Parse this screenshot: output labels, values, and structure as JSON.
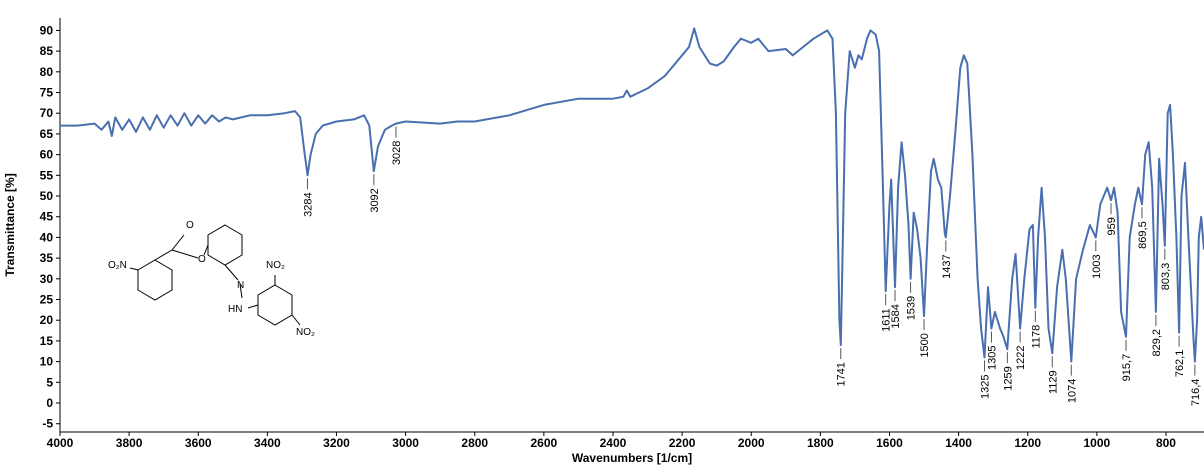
{
  "chart_data": {
    "type": "line",
    "x_label": "Wavenumbers [1/cm]",
    "y_label": "Transmittance [%]",
    "xlim": [
      4000,
      690
    ],
    "ylim": [
      -7,
      93
    ],
    "xticks": [
      4000,
      3800,
      3600,
      3400,
      3200,
      3000,
      2800,
      2600,
      2400,
      2200,
      2000,
      1800,
      1600,
      1400,
      1200,
      1000,
      800
    ],
    "yticks": [
      -5,
      0,
      5,
      10,
      15,
      20,
      25,
      30,
      35,
      40,
      45,
      50,
      55,
      60,
      65,
      70,
      75,
      80,
      85,
      90
    ],
    "series": [
      {
        "color": "#4a6fb0",
        "x": [
          4000,
          3950,
          3900,
          3880,
          3860,
          3850,
          3840,
          3820,
          3800,
          3780,
          3760,
          3740,
          3720,
          3700,
          3680,
          3660,
          3640,
          3620,
          3600,
          3580,
          3560,
          3540,
          3520,
          3500,
          3450,
          3400,
          3350,
          3320,
          3305,
          3295,
          3284,
          3275,
          3260,
          3240,
          3200,
          3150,
          3120,
          3105,
          3092,
          3080,
          3060,
          3040,
          3028,
          3000,
          2900,
          2850,
          2800,
          2700,
          2600,
          2500,
          2400,
          2370,
          2360,
          2350,
          2300,
          2250,
          2200,
          2180,
          2165,
          2150,
          2120,
          2100,
          2080,
          2050,
          2030,
          2000,
          1980,
          1950,
          1900,
          1880,
          1850,
          1820,
          1780,
          1765,
          1755,
          1745,
          1741,
          1737,
          1728,
          1715,
          1700,
          1690,
          1680,
          1665,
          1655,
          1640,
          1630,
          1620,
          1611,
          1600,
          1595,
          1584,
          1575,
          1565,
          1555,
          1545,
          1539,
          1530,
          1520,
          1510,
          1500,
          1490,
          1480,
          1472,
          1460,
          1450,
          1440,
          1437,
          1425,
          1410,
          1395,
          1385,
          1375,
          1360,
          1345,
          1335,
          1325,
          1315,
          1305,
          1295,
          1280,
          1270,
          1259,
          1245,
          1235,
          1222,
          1210,
          1195,
          1185,
          1178,
          1170,
          1160,
          1150,
          1140,
          1129,
          1115,
          1100,
          1090,
          1074,
          1060,
          1040,
          1020,
          1003,
          990,
          970,
          959,
          950,
          940,
          930,
          915.7,
          905,
          890,
          880,
          869.5,
          860,
          850,
          840,
          829.2,
          820,
          810,
          803.3,
          795,
          788,
          780,
          770,
          762.1,
          755,
          745,
          735,
          720,
          716.4,
          710,
          705,
          698,
          690
        ],
        "values": [
          67,
          67,
          67.5,
          66,
          68,
          64.5,
          69,
          66,
          68.5,
          65.5,
          69,
          66,
          69.5,
          66.5,
          69.5,
          67,
          70,
          67,
          69.5,
          67.5,
          69.5,
          68,
          69,
          68.5,
          69.5,
          69.5,
          70,
          70.5,
          69,
          62,
          55,
          60,
          65,
          67,
          68,
          68.5,
          69.5,
          67,
          56,
          62,
          66,
          67,
          67.5,
          68,
          67.5,
          68,
          68,
          69.5,
          72,
          73.5,
          73.5,
          74,
          75.5,
          74,
          76,
          79,
          84,
          86,
          90.5,
          86,
          82,
          81.5,
          82.5,
          86,
          88,
          87,
          88,
          85,
          85.5,
          84,
          86,
          88,
          90,
          88,
          70,
          20,
          14,
          30,
          70,
          85,
          81,
          84,
          83,
          88,
          90,
          89,
          85,
          55,
          27,
          48,
          54,
          28,
          52,
          63,
          55,
          43,
          30,
          46,
          42,
          35,
          21,
          40,
          56,
          59,
          54,
          52,
          41,
          40,
          50,
          65,
          81,
          84,
          82,
          60,
          30,
          18,
          11,
          28,
          18,
          22,
          18,
          16,
          13,
          30,
          36,
          18,
          30,
          42,
          43,
          23,
          40,
          52,
          40,
          18,
          12,
          28,
          37,
          30,
          10,
          30,
          37,
          43,
          40,
          48,
          52,
          49,
          52,
          46,
          22,
          16,
          40,
          48,
          52,
          48,
          60,
          63,
          52,
          22,
          59,
          48,
          38,
          70,
          72,
          60,
          40,
          17,
          50,
          58,
          40,
          15,
          10,
          20,
          40,
          45,
          37
        ]
      }
    ],
    "annotations": [
      {
        "x": 3284,
        "y": 55,
        "label": "3284"
      },
      {
        "x": 3092,
        "y": 56,
        "label": "3092"
      },
      {
        "x": 3028,
        "y": 67.5,
        "label": "3028"
      },
      {
        "x": 1741,
        "y": 14,
        "label": "1741"
      },
      {
        "x": 1611,
        "y": 27,
        "label": "1611"
      },
      {
        "x": 1584,
        "y": 28,
        "label": "1584"
      },
      {
        "x": 1539,
        "y": 30,
        "label": "1539"
      },
      {
        "x": 1500,
        "y": 21,
        "label": "1500"
      },
      {
        "x": 1437,
        "y": 40,
        "label": "1437"
      },
      {
        "x": 1325,
        "y": 11,
        "label": "1325"
      },
      {
        "x": 1305,
        "y": 18,
        "label": "1305"
      },
      {
        "x": 1259,
        "y": 13,
        "label": "1259"
      },
      {
        "x": 1222,
        "y": 18,
        "label": "1222"
      },
      {
        "x": 1178,
        "y": 23,
        "label": "1178"
      },
      {
        "x": 1129,
        "y": 12,
        "label": "1129"
      },
      {
        "x": 1074,
        "y": 10,
        "label": "1074"
      },
      {
        "x": 1003,
        "y": 40,
        "label": "1003"
      },
      {
        "x": 959,
        "y": 49,
        "label": "959"
      },
      {
        "x": 915.7,
        "y": 16,
        "label": "915,7"
      },
      {
        "x": 869.5,
        "y": 48,
        "label": "869,5"
      },
      {
        "x": 829.2,
        "y": 22,
        "label": "829,2"
      },
      {
        "x": 803.3,
        "y": 38,
        "label": "803,3"
      },
      {
        "x": 762.1,
        "y": 17,
        "label": "762,1"
      },
      {
        "x": 716.4,
        "y": 10,
        "label": "716,4"
      }
    ],
    "molecule_labels": [
      "O",
      "O",
      "O₂N",
      "N",
      "HN",
      "NO₂",
      "NO₂"
    ]
  }
}
